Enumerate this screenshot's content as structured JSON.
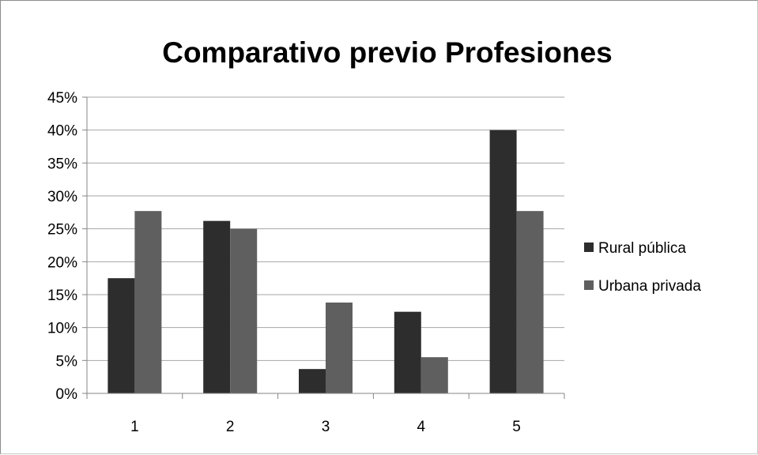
{
  "chart_data": {
    "type": "bar",
    "title": "Comparativo previo Profesiones",
    "categories": [
      "1",
      "2",
      "3",
      "4",
      "5"
    ],
    "series": [
      {
        "name": "Rural pública",
        "values": [
          17.5,
          26.2,
          3.7,
          12.4,
          40.0
        ],
        "color": "#2d2d2d"
      },
      {
        "name": "Urbana privada",
        "values": [
          27.7,
          25.0,
          13.8,
          5.5,
          27.7
        ],
        "color": "#5f5f5f"
      }
    ],
    "ylim": [
      0,
      45
    ],
    "yticks": [
      0,
      5,
      10,
      15,
      20,
      25,
      30,
      35,
      40,
      45
    ],
    "ytick_labels": [
      "0%",
      "5%",
      "10%",
      "15%",
      "20%",
      "25%",
      "30%",
      "35%",
      "40%",
      "45%"
    ],
    "xlabel": "",
    "ylabel": "",
    "grid": true,
    "legend_position": "right",
    "colors": {
      "grid": "#a6a6a6",
      "axis": "#868686"
    }
  }
}
